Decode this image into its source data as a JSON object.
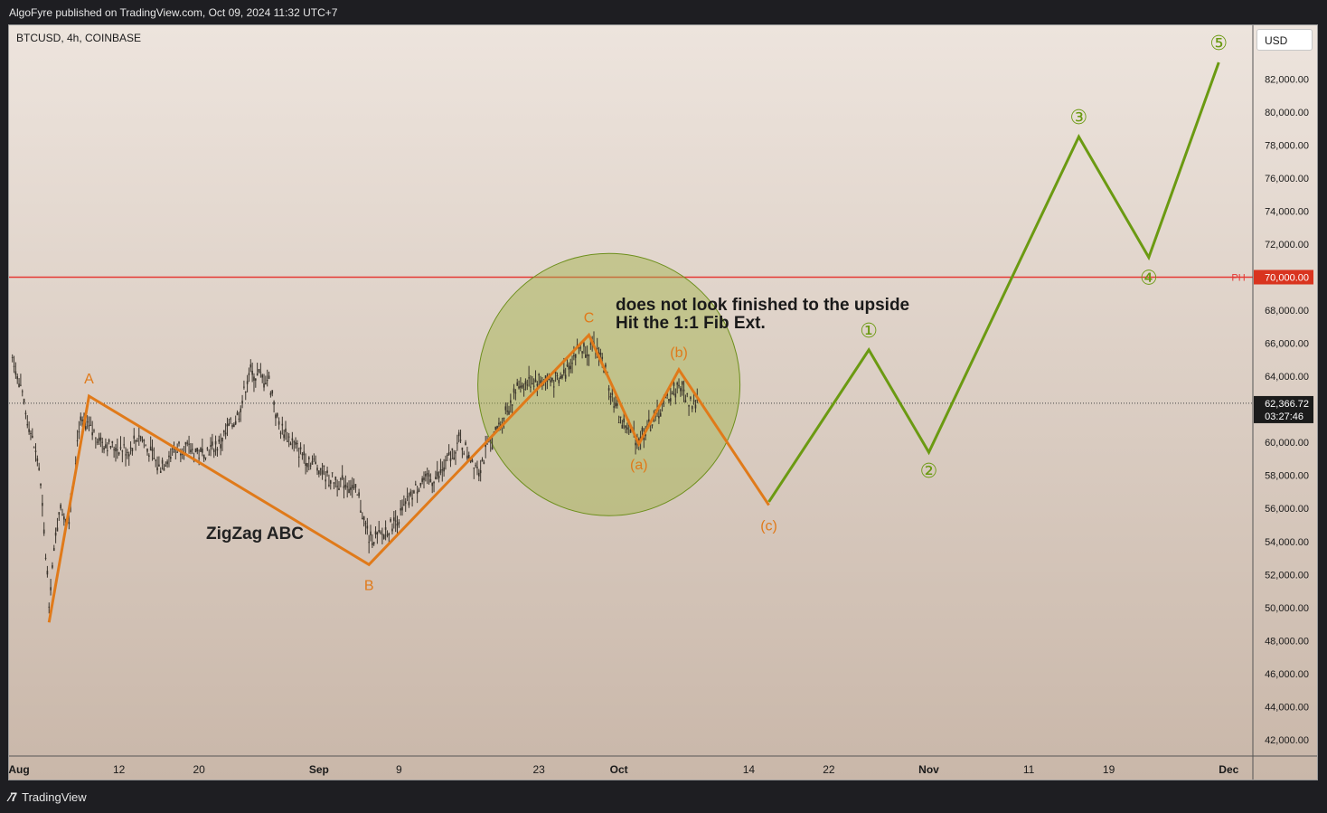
{
  "header": {
    "published": "AlgoFyre published on TradingView.com, Oct 09, 2024 11:32 UTC+7"
  },
  "symbol": "BTCUSD, 4h, COINBASE",
  "currency_button": "USD",
  "footer": {
    "brand": "TradingView"
  },
  "chart_data": {
    "type": "line",
    "title": "BTCUSD, 4h, COINBASE",
    "y_axis": {
      "ticks": [
        "82,000.00",
        "80,000.00",
        "78,000.00",
        "76,000.00",
        "74,000.00",
        "72,000.00",
        "70,000.00",
        "68,000.00",
        "66,000.00",
        "64,000.00",
        "62,366.72",
        "60,000.00",
        "58,000.00",
        "56,000.00",
        "54,000.00",
        "52,000.00",
        "50,000.00",
        "48,000.00",
        "46,000.00",
        "44,000.00",
        "42,000.00"
      ],
      "tick_values": [
        82000,
        80000,
        78000,
        76000,
        74000,
        72000,
        70000,
        68000,
        66000,
        64000,
        62366.72,
        60000,
        58000,
        56000,
        54000,
        52000,
        50000,
        48000,
        46000,
        44000,
        42000
      ],
      "range": [
        40600,
        84800
      ]
    },
    "x_axis": {
      "labels": [
        "Aug",
        "12",
        "20",
        "Sep",
        "9",
        "23",
        "Oct",
        "14",
        "22",
        "Nov",
        "11",
        "19",
        "Dec"
      ],
      "bold": [
        "Aug",
        "Sep",
        "Oct",
        "Nov",
        "Dec"
      ],
      "dates": [
        "2024-08-01",
        "2024-08-12",
        "2024-08-20",
        "2024-09-01",
        "2024-09-09",
        "2024-09-23",
        "2024-10-01",
        "2024-10-14",
        "2024-10-22",
        "2024-11-01",
        "2024-11-11",
        "2024-11-19",
        "2024-12-01"
      ]
    },
    "current_price": {
      "value": 62366.72,
      "label": "62,366.72",
      "countdown": "03:27:46"
    },
    "horizontal_line": {
      "value": 70000,
      "label": "PH",
      "price_label": "70,000.00",
      "color": "#e53935"
    },
    "zigzag_orange": {
      "color": "#e07a1a",
      "points": [
        {
          "x": "2024-08-05",
          "y": 49100,
          "label": ""
        },
        {
          "x": "2024-08-09",
          "y": 62800,
          "label": "A"
        },
        {
          "x": "2024-09-06",
          "y": 52600,
          "label": "B"
        },
        {
          "x": "2024-09-28",
          "y": 66500,
          "label": "C"
        },
        {
          "x": "2024-10-03",
          "y": 59900,
          "label": "(a)"
        },
        {
          "x": "2024-10-07",
          "y": 64400,
          "label": "(b)"
        },
        {
          "x": "2024-10-16",
          "y": 56200,
          "label": "(c)"
        }
      ]
    },
    "impulse_green": {
      "color": "#6b9a12",
      "points": [
        {
          "x": "2024-10-16",
          "y": 56400,
          "label": ""
        },
        {
          "x": "2024-10-26",
          "y": 65600,
          "label": "①"
        },
        {
          "x": "2024-11-01",
          "y": 59400,
          "label": "②"
        },
        {
          "x": "2024-11-16",
          "y": 78500,
          "label": "③"
        },
        {
          "x": "2024-11-23",
          "y": 71200,
          "label": "④"
        },
        {
          "x": "2024-11-30",
          "y": 83000,
          "label": "⑤"
        }
      ]
    },
    "annotations": [
      {
        "text": "ZigZag ABC"
      },
      {
        "text": "does not look finished to the upside"
      },
      {
        "text": "Hit the 1:1 Fib Ext."
      }
    ],
    "highlight_circle": {
      "center": {
        "x": "2024-09-30",
        "y": 63500
      },
      "fill": "#9fb244",
      "stroke": "#6d8f1c"
    },
    "candles_close_path": [
      [
        "2024-08-01",
        66500
      ],
      [
        "2024-08-02",
        63500
      ],
      [
        "2024-08-03",
        61000
      ],
      [
        "2024-08-04",
        58500
      ],
      [
        "2024-08-05",
        50500
      ],
      [
        "2024-08-06",
        56000
      ],
      [
        "2024-08-07",
        55500
      ],
      [
        "2024-08-08",
        61000
      ],
      [
        "2024-08-09",
        60800
      ],
      [
        "2024-08-11",
        59800
      ],
      [
        "2024-08-13",
        59500
      ],
      [
        "2024-08-14",
        60500
      ],
      [
        "2024-08-16",
        58500
      ],
      [
        "2024-08-18",
        59800
      ],
      [
        "2024-08-20",
        59300
      ],
      [
        "2024-08-22",
        59900
      ],
      [
        "2024-08-24",
        61800
      ],
      [
        "2024-08-25",
        64200
      ],
      [
        "2024-08-27",
        63800
      ],
      [
        "2024-08-28",
        61000
      ],
      [
        "2024-08-30",
        59500
      ],
      [
        "2024-09-01",
        58500
      ],
      [
        "2024-09-02",
        57800
      ],
      [
        "2024-09-04",
        57500
      ],
      [
        "2024-09-05",
        56500
      ],
      [
        "2024-09-06",
        54200
      ],
      [
        "2024-09-07",
        54200
      ],
      [
        "2024-09-09",
        55500
      ],
      [
        "2024-09-11",
        57500
      ],
      [
        "2024-09-13",
        58000
      ],
      [
        "2024-09-15",
        60000
      ],
      [
        "2024-09-17",
        58500
      ],
      [
        "2024-09-19",
        61000
      ],
      [
        "2024-09-21",
        63500
      ],
      [
        "2024-09-23",
        63800
      ],
      [
        "2024-09-25",
        63700
      ],
      [
        "2024-09-27",
        65800
      ],
      [
        "2024-09-29",
        65600
      ],
      [
        "2024-10-01",
        61500
      ],
      [
        "2024-10-02",
        60800
      ],
      [
        "2024-10-03",
        60200
      ],
      [
        "2024-10-05",
        61800
      ],
      [
        "2024-10-06",
        62800
      ],
      [
        "2024-10-07",
        63500
      ],
      [
        "2024-10-08",
        62500
      ],
      [
        "2024-10-09",
        62400
      ]
    ]
  }
}
